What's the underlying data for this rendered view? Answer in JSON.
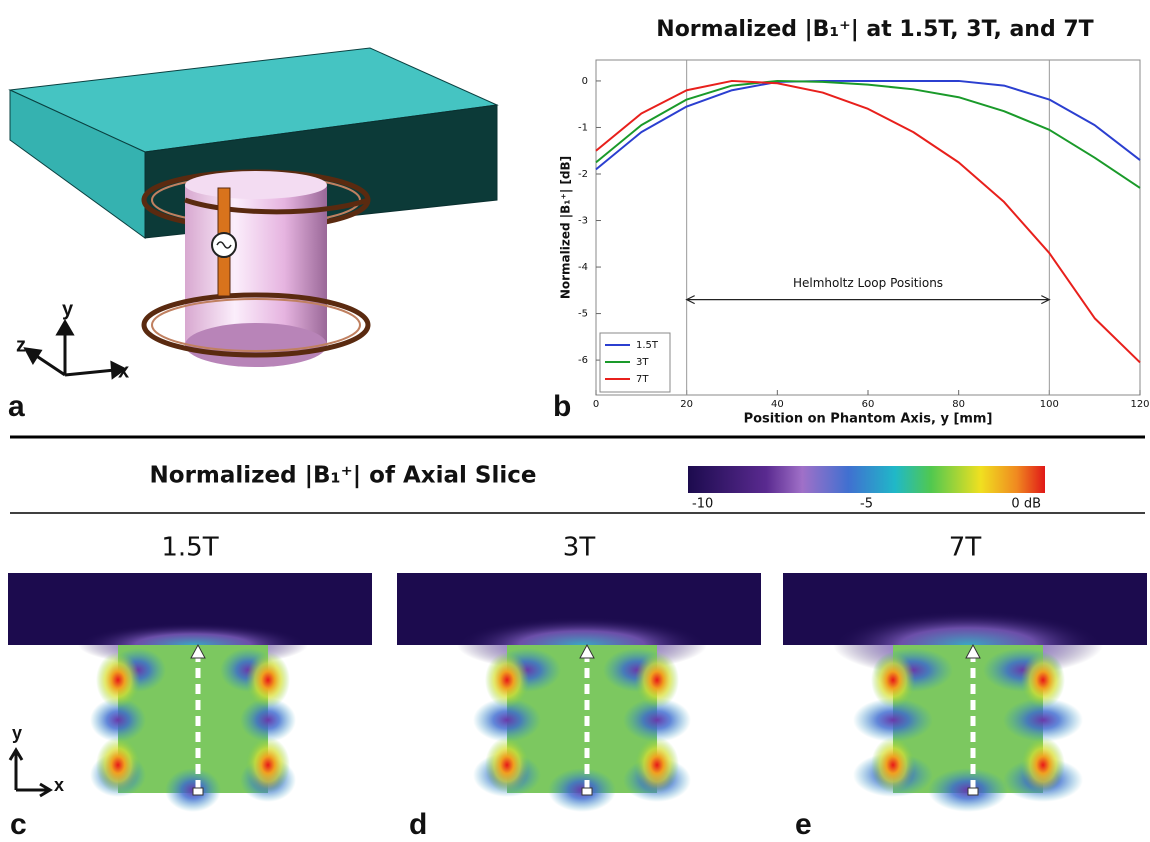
{
  "chart_data": {
    "type": "line",
    "title": "Normalized |B₁⁺| at 1.5T, 3T, and 7T",
    "xlabel": "Position on Phantom Axis, y [mm]",
    "ylabel": "Normalized |B₁⁺| [dB]",
    "x": [
      0,
      10,
      20,
      30,
      40,
      50,
      60,
      70,
      80,
      90,
      100,
      110,
      120
    ],
    "series": [
      {
        "name": "1.5T",
        "color": "#2b3fd0",
        "values": [
          -1.9,
          -1.1,
          -0.55,
          -0.2,
          -0.02,
          0,
          0,
          0,
          0,
          -0.1,
          -0.4,
          -0.95,
          -1.7
        ]
      },
      {
        "name": "3T",
        "color": "#1a9a2a",
        "values": [
          -1.75,
          -0.95,
          -0.4,
          -0.1,
          0,
          -0.02,
          -0.08,
          -0.18,
          -0.35,
          -0.65,
          -1.05,
          -1.65,
          -2.3
        ]
      },
      {
        "name": "7T",
        "color": "#e8201c",
        "values": [
          -1.5,
          -0.7,
          -0.2,
          0,
          -0.05,
          -0.25,
          -0.6,
          -1.1,
          -1.75,
          -2.6,
          -3.7,
          -5.1,
          -6.05
        ]
      }
    ],
    "xlim": [
      0,
      120
    ],
    "xticks": [
      0,
      20,
      40,
      60,
      80,
      100,
      120
    ],
    "ylim": [
      -6.75,
      0.45
    ],
    "yticks": [
      0,
      -1,
      -2,
      -3,
      -4,
      -5,
      -6
    ],
    "vlines": [
      20,
      100
    ],
    "annotation": {
      "text": "Helmholtz Loop Positions",
      "y": -4.7
    },
    "legend": "lower-left"
  },
  "figure": {
    "panel_labels": [
      "a",
      "b",
      "c",
      "d",
      "e"
    ],
    "axes_a": [
      "y",
      "z",
      "x"
    ],
    "axes_c": [
      "y",
      "x"
    ],
    "section_title": "Normalized |B₁⁺| of Axial Slice",
    "map_titles": [
      "1.5T",
      "3T",
      "7T"
    ],
    "colorbar": {
      "lim": [
        -10,
        0
      ],
      "ticks": [
        -10,
        -5,
        {
          "value": 0,
          "label": "0 dB"
        }
      ]
    }
  }
}
